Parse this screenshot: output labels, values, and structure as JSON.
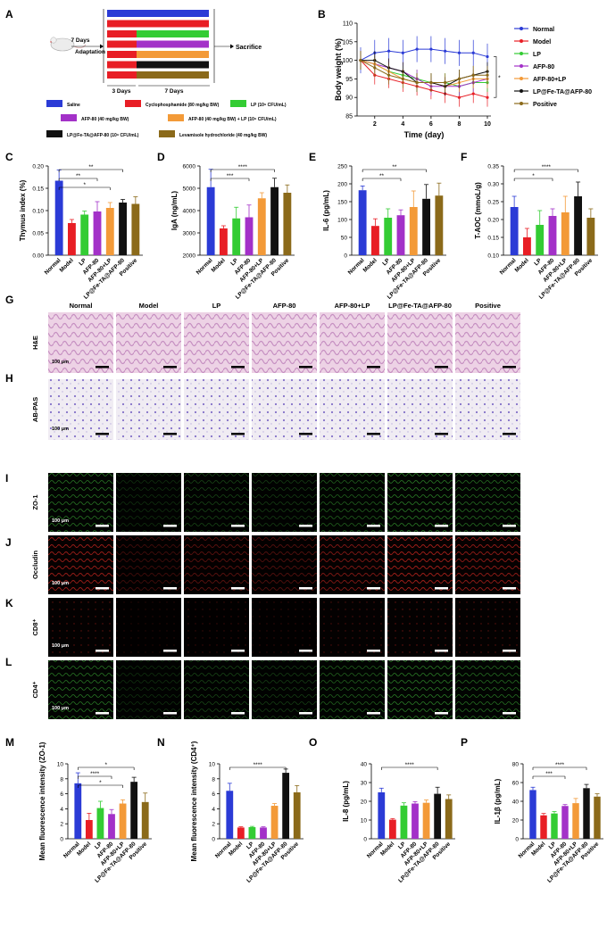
{
  "panel_letters": [
    "A",
    "B",
    "C",
    "D",
    "E",
    "F",
    "G",
    "H",
    "I",
    "J",
    "K",
    "L",
    "M",
    "N",
    "O",
    "P"
  ],
  "colors": {
    "Saline": "#2b3bd6",
    "Normal": "#2b3bd6",
    "Model": "#e81e25",
    "LP": "#33cc33",
    "AFP-80": "#a331c8",
    "AFP-80+LP": "#f39a38",
    "LP@Fe-TA@AFP-80": "#111111",
    "Positive": "#8b6a1a",
    "Levamisole": "#8b6a1a"
  },
  "schematic": {
    "bar_groups": [
      "Saline",
      "Cyclophosphamide",
      "LP",
      "AFP-80",
      "AFP-80+LP",
      "LP@Fe-TA@AFP-80",
      "Levamisole"
    ],
    "adaptation_label": "7 Days",
    "adaptation_label2": "Adaptation",
    "sacrifice_label": "Sacrifice",
    "days3_label": "3 Days",
    "days7_label": "7 Days",
    "legend": [
      {
        "key": "Saline",
        "label": "Saline"
      },
      {
        "key": "Model",
        "label": "Cyclophosphamide (80 mg/kg BW)"
      },
      {
        "key": "LP",
        "label": "LP (10⁹ CFU/mL)"
      },
      {
        "key": "AFP-80",
        "label": "AFP-80 (40 mg/kg BW)"
      },
      {
        "key": "AFP-80+LP",
        "label": "AFP-80 (40 mg/kg BW) + LP (10⁹ CFU/mL)"
      },
      {
        "key": "LP@Fe-TA@AFP-80",
        "label": "LP@Fe-TA@AFP-80 (10⁹ CFU/mL)"
      },
      {
        "key": "Levamisole",
        "label": "Levamisole hydrochloride (40 mg/kg BW)"
      }
    ]
  },
  "groups": [
    "Normal",
    "Model",
    "LP",
    "AFP-80",
    "AFP-80+LP",
    "LP@Fe-TA@AFP-80",
    "Positive"
  ],
  "micro_rows": [
    "H&E",
    "AB-PAS",
    "ZO-1",
    "Occludin",
    "CD8⁺",
    "CD4⁺"
  ],
  "scale_label": "100 μm",
  "chart_data": [
    {
      "id": "B",
      "type": "line",
      "x": [
        1,
        2,
        3,
        4,
        5,
        6,
        7,
        8,
        9,
        10
      ],
      "xticks": [
        2,
        4,
        6,
        8,
        10
      ],
      "ylim": [
        85,
        110
      ],
      "yticks": [
        85,
        90,
        95,
        100,
        105,
        110
      ],
      "xlabel": "Time (day)",
      "ylabel": "Body weight (%)",
      "annotation": "*",
      "series": [
        {
          "name": "Normal",
          "values": [
            100,
            102,
            102.5,
            102,
            103,
            103,
            102.5,
            102,
            102,
            101
          ]
        },
        {
          "name": "Model",
          "values": [
            100,
            96,
            95,
            94,
            93,
            92,
            91,
            90,
            91,
            90
          ]
        },
        {
          "name": "LP",
          "values": [
            100,
            99,
            97,
            96,
            95,
            94,
            94,
            93,
            94,
            94
          ]
        },
        {
          "name": "AFP-80",
          "values": [
            100,
            99,
            98,
            97,
            95,
            93,
            93,
            93,
            94,
            95
          ]
        },
        {
          "name": "AFP-80+LP",
          "values": [
            100,
            99,
            97,
            95,
            94,
            94,
            93,
            94,
            95,
            95
          ]
        },
        {
          "name": "LP@Fe-TA@AFP-80",
          "values": [
            100,
            100,
            98,
            97,
            94,
            94,
            93,
            95,
            96,
            97
          ]
        },
        {
          "name": "Positive",
          "values": [
            100,
            98,
            96,
            95,
            94,
            94,
            94,
            95,
            96,
            96
          ]
        }
      ]
    },
    {
      "id": "C",
      "type": "bar",
      "ylabel": "Thymus index (%)",
      "ylim": [
        0,
        0.2
      ],
      "yticks": [
        "0.00",
        "0.05",
        "0.10",
        "0.15",
        "0.20"
      ],
      "values": [
        0.167,
        0.072,
        0.091,
        0.098,
        0.106,
        0.118,
        0.115
      ],
      "errors": [
        0.024,
        0.008,
        0.008,
        0.022,
        0.012,
        0.007,
        0.016
      ],
      "sig": [
        "**",
        "**",
        "*"
      ]
    },
    {
      "id": "D",
      "type": "bar",
      "ylabel": "IgA (ng/mL)",
      "ylim": [
        2000,
        6000
      ],
      "yticks": [
        "2000",
        "3000",
        "4000",
        "5000",
        "6000"
      ],
      "values": [
        5050,
        3200,
        3650,
        3700,
        4550,
        5050,
        4800
      ],
      "errors": [
        800,
        120,
        500,
        550,
        250,
        400,
        350
      ],
      "sig": [
        "****",
        "***"
      ]
    },
    {
      "id": "E",
      "type": "bar",
      "ylabel": "IL-6 (pg/mL)",
      "ylim": [
        0,
        250
      ],
      "yticks": [
        "0",
        "50",
        "100",
        "150",
        "200",
        "250"
      ],
      "values": [
        182,
        82,
        105,
        112,
        135,
        158,
        167
      ],
      "errors": [
        12,
        20,
        25,
        15,
        45,
        40,
        35
      ],
      "sig": [
        "**",
        "**"
      ]
    },
    {
      "id": "F",
      "type": "bar",
      "ylabel": "T-AOC (mmoL/g)",
      "ylim": [
        0.1,
        0.35
      ],
      "yticks": [
        "0.10",
        "0.15",
        "0.20",
        "0.25",
        "0.30",
        "0.35"
      ],
      "values": [
        0.235,
        0.15,
        0.185,
        0.21,
        0.22,
        0.265,
        0.205
      ],
      "errors": [
        0.03,
        0.025,
        0.04,
        0.02,
        0.045,
        0.04,
        0.025
      ],
      "sig": [
        "****",
        "*"
      ]
    },
    {
      "id": "M",
      "type": "bar",
      "ylabel": "Mean fluorescence intensity (ZO-1)",
      "ylim": [
        0,
        10
      ],
      "yticks": [
        "0",
        "2",
        "4",
        "6",
        "8",
        "10"
      ],
      "values": [
        7.4,
        2.5,
        4.1,
        3.3,
        4.7,
        7.6,
        4.9
      ],
      "errors": [
        1.4,
        0.9,
        0.9,
        0.6,
        0.5,
        0.6,
        1.2
      ],
      "sig": [
        "*",
        "****",
        "*"
      ]
    },
    {
      "id": "N",
      "type": "bar",
      "ylabel": "Mean fluorescence intensity (CD4⁺)",
      "ylim": [
        0,
        10
      ],
      "yticks": [
        "0",
        "2",
        "4",
        "6",
        "8",
        "10"
      ],
      "values": [
        6.4,
        1.5,
        1.55,
        1.5,
        4.4,
        8.8,
        6.2
      ],
      "errors": [
        1.0,
        0.1,
        0.1,
        0.1,
        0.3,
        0.5,
        0.9
      ],
      "sig": [
        "****"
      ]
    },
    {
      "id": "O",
      "type": "bar",
      "ylabel": "IL-8 (pg/mL)",
      "ylim": [
        0,
        40
      ],
      "yticks": [
        "0",
        "10",
        "20",
        "30",
        "40"
      ],
      "values": [
        24.8,
        10.2,
        17.7,
        18.8,
        19.2,
        24.0,
        21.2
      ],
      "errors": [
        2.2,
        0.6,
        1.5,
        1.0,
        1.5,
        3.5,
        2.2
      ],
      "sig": [
        "****"
      ]
    },
    {
      "id": "P",
      "type": "bar",
      "ylabel": "IL-1β (pg/mL)",
      "ylim": [
        0,
        80
      ],
      "yticks": [
        "0",
        "20",
        "40",
        "60",
        "80"
      ],
      "values": [
        52,
        25,
        27,
        35,
        38,
        54,
        45
      ],
      "errors": [
        3,
        2,
        2,
        1.5,
        5,
        4,
        3
      ],
      "sig": [
        "****",
        "***"
      ]
    }
  ]
}
